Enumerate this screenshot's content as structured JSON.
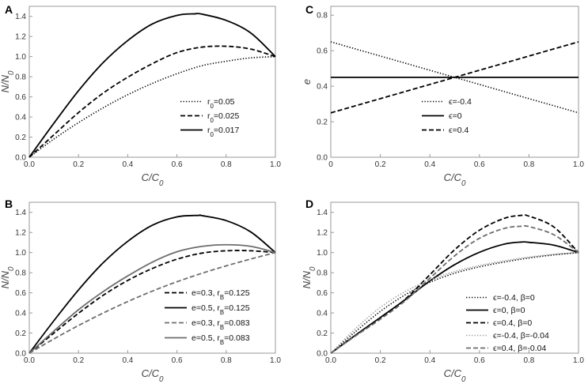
{
  "chart_data": [
    {
      "panel": "A",
      "type": "line",
      "xlabel": "C/C",
      "xlabel_sub": "0",
      "ylabel": "N/N",
      "ylabel_sub": "0",
      "xlim": [
        0,
        1
      ],
      "ylim": [
        0,
        1.5
      ],
      "xticks": [
        "0.0",
        "0.2",
        "0.4",
        "0.6",
        "0.8",
        "1.0"
      ],
      "yticks": [
        "0.0",
        "0.2",
        "0.4",
        "0.6",
        "0.8",
        "1.0",
        "1.2",
        "1.4"
      ],
      "legend_position": "bottom-right",
      "series": [
        {
          "legend": {
            "pre": "r",
            "sub": "0",
            "post": "=0.05"
          },
          "style": "dotted",
          "color": "#000000",
          "x": [
            0,
            0.1,
            0.2,
            0.3,
            0.4,
            0.5,
            0.6,
            0.7,
            0.8,
            0.9,
            1.0
          ],
          "y": [
            0,
            0.181,
            0.344,
            0.491,
            0.621,
            0.734,
            0.83,
            0.909,
            0.954,
            0.988,
            1.0
          ]
        },
        {
          "legend": {
            "pre": "r",
            "sub": "0",
            "post": "=0.025"
          },
          "style": "dashed",
          "color": "#000000",
          "x": [
            0,
            0.1,
            0.2,
            0.3,
            0.4,
            0.5,
            0.6,
            0.7,
            0.8,
            0.9,
            1.0
          ],
          "y": [
            0,
            0.223,
            0.444,
            0.637,
            0.795,
            0.93,
            1.04,
            1.094,
            1.103,
            1.075,
            1.0
          ]
        },
        {
          "legend": {
            "pre": "r",
            "sub": "0",
            "post": "=0.017"
          },
          "style": "solid",
          "color": "#000000",
          "x": [
            0,
            0.1,
            0.2,
            0.3,
            0.4,
            0.5,
            0.6,
            0.67,
            0.7,
            0.8,
            0.9,
            1.0
          ],
          "y": [
            0,
            0.338,
            0.661,
            0.94,
            1.16,
            1.325,
            1.41,
            1.425,
            1.423,
            1.36,
            1.235,
            1.0
          ]
        }
      ]
    },
    {
      "panel": "C",
      "type": "line",
      "xlabel": "C/C",
      "xlabel_sub": "0",
      "ylabel": "e",
      "ylabel_sub": "",
      "xlim": [
        0,
        1
      ],
      "ylim": [
        0,
        0.85
      ],
      "xticks": [
        "0",
        "0.2",
        "0.4",
        "0.6",
        "0.8",
        "1.0"
      ],
      "yticks": [
        "0.0",
        "0.2",
        "0.4",
        "0.6",
        "0.8"
      ],
      "legend_position": "bottom-center",
      "series": [
        {
          "legend": {
            "pre": "ϵ",
            "sub": "",
            "post": "=-0.4"
          },
          "style": "dotted",
          "color": "#000000",
          "x": [
            0,
            1
          ],
          "y": [
            0.65,
            0.25
          ]
        },
        {
          "legend": {
            "pre": "ϵ",
            "sub": "",
            "post": "=0"
          },
          "style": "solid",
          "color": "#000000",
          "x": [
            0,
            1
          ],
          "y": [
            0.45,
            0.45
          ]
        },
        {
          "legend": {
            "pre": "ϵ",
            "sub": "",
            "post": "=0.4"
          },
          "style": "dashed",
          "color": "#000000",
          "x": [
            0,
            1
          ],
          "y": [
            0.25,
            0.65
          ]
        }
      ]
    },
    {
      "panel": "B",
      "type": "line",
      "xlabel": "C/C",
      "xlabel_sub": "0",
      "ylabel": "N/N",
      "ylabel_sub": "0",
      "xlim": [
        0,
        1
      ],
      "ylim": [
        0,
        1.5
      ],
      "xticks": [
        "0.0",
        "0.2",
        "0.4",
        "0.6",
        "0.8",
        "1.0"
      ],
      "yticks": [
        "0.0",
        "0.2",
        "0.4",
        "0.6",
        "0.8",
        "1.0",
        "1.2",
        "1.4"
      ],
      "legend_position": "bottom-right",
      "series": [
        {
          "legend": {
            "pre": "e=0.3, r",
            "sub": "B",
            "post": "=0.125"
          },
          "style": "dashed",
          "color": "#000000",
          "x": [
            0,
            0.1,
            0.2,
            0.3,
            0.4,
            0.5,
            0.6,
            0.7,
            0.8,
            0.9,
            1.0
          ],
          "y": [
            0,
            0.2,
            0.397,
            0.575,
            0.723,
            0.842,
            0.934,
            0.994,
            1.018,
            1.018,
            1.0
          ]
        },
        {
          "legend": {
            "pre": "e=0.5, r",
            "sub": "B",
            "post": "=0.125"
          },
          "style": "solid",
          "color": "#000000",
          "x": [
            0,
            0.1,
            0.2,
            0.3,
            0.4,
            0.5,
            0.6,
            0.69,
            0.7,
            0.8,
            0.9,
            1.0
          ],
          "y": [
            0,
            0.323,
            0.629,
            0.898,
            1.112,
            1.272,
            1.355,
            1.37,
            1.368,
            1.318,
            1.205,
            1.0
          ]
        },
        {
          "legend": {
            "pre": "e=0.3, r",
            "sub": "B",
            "post": "=0.083"
          },
          "style": "dashed",
          "color": "#6e6e6e",
          "x": [
            0,
            0.1,
            0.2,
            0.3,
            0.4,
            0.5,
            0.6,
            0.7,
            0.8,
            0.9,
            1.0
          ],
          "y": [
            0,
            0.142,
            0.275,
            0.399,
            0.513,
            0.617,
            0.71,
            0.793,
            0.868,
            0.936,
            1.0
          ]
        },
        {
          "legend": {
            "pre": "e=0.5, r",
            "sub": "B",
            "post": "=0.083"
          },
          "style": "solid",
          "color": "#6e6e6e",
          "x": [
            0,
            0.1,
            0.2,
            0.3,
            0.4,
            0.5,
            0.6,
            0.7,
            0.8,
            0.9,
            1.0
          ],
          "y": [
            0,
            0.22,
            0.432,
            0.612,
            0.768,
            0.905,
            1.008,
            1.061,
            1.078,
            1.062,
            1.0
          ]
        }
      ]
    },
    {
      "panel": "D",
      "type": "line",
      "xlabel": "C/C",
      "xlabel_sub": "0",
      "ylabel": "N/N",
      "ylabel_sub": "0",
      "xlim": [
        0,
        1
      ],
      "ylim": [
        0,
        1.5
      ],
      "xticks": [
        "0.0",
        "0.2",
        "0.4",
        "0.6",
        "0.8",
        "1.0"
      ],
      "yticks": [
        "0.0",
        "0.2",
        "0.4",
        "0.6",
        "0.8",
        "1.0",
        "1.2",
        "1.4"
      ],
      "legend_position": "bottom-right",
      "series": [
        {
          "legend": {
            "pre": "ϵ=-0.4, β=0",
            "sub": "",
            "post": ""
          },
          "style": "dotted",
          "color": "#000000",
          "x": [
            0,
            0.1,
            0.2,
            0.3,
            0.4,
            0.5,
            0.6,
            0.7,
            0.8,
            0.9,
            1.0
          ],
          "y": [
            0,
            0.215,
            0.415,
            0.58,
            0.705,
            0.795,
            0.858,
            0.906,
            0.946,
            0.977,
            1.0
          ]
        },
        {
          "legend": {
            "pre": "ϵ=0, β=0",
            "sub": "",
            "post": ""
          },
          "style": "solid",
          "color": "#000000",
          "x": [
            0,
            0.1,
            0.2,
            0.3,
            0.4,
            0.5,
            0.6,
            0.7,
            0.77,
            0.8,
            0.9,
            1.0
          ],
          "y": [
            0,
            0.18,
            0.355,
            0.531,
            0.718,
            0.88,
            1.003,
            1.084,
            1.105,
            1.102,
            1.074,
            1.0
          ]
        },
        {
          "legend": {
            "pre": "ϵ=0.4, β=0",
            "sub": "",
            "post": ""
          },
          "style": "dashed",
          "color": "#000000",
          "x": [
            0,
            0.1,
            0.2,
            0.3,
            0.4,
            0.5,
            0.6,
            0.7,
            0.77,
            0.8,
            0.9,
            1.0
          ],
          "y": [
            0,
            0.175,
            0.342,
            0.536,
            0.78,
            1.028,
            1.222,
            1.34,
            1.37,
            1.362,
            1.255,
            1.0
          ]
        },
        {
          "legend": {
            "pre": "ϵ=-0.4, β=-0.04",
            "sub": "",
            "post": ""
          },
          "style": "dotted",
          "color": "#9a9a9a",
          "x": [
            0,
            0.1,
            0.2,
            0.3,
            0.4,
            0.5,
            0.6,
            0.7,
            0.8,
            0.9,
            1.0
          ],
          "y": [
            0,
            0.245,
            0.455,
            0.612,
            0.728,
            0.812,
            0.872,
            0.918,
            0.955,
            0.982,
            1.0
          ]
        },
        {
          "legend": {
            "pre": "ϵ=0.4, β=-0.04",
            "sub": "",
            "post": ""
          },
          "style": "dashed",
          "color": "#6e6e6e",
          "x": [
            0,
            0.1,
            0.2,
            0.3,
            0.4,
            0.5,
            0.6,
            0.7,
            0.77,
            0.8,
            0.9,
            1.0
          ],
          "y": [
            0,
            0.172,
            0.338,
            0.52,
            0.745,
            0.968,
            1.142,
            1.24,
            1.262,
            1.258,
            1.178,
            1.0
          ]
        }
      ]
    }
  ]
}
